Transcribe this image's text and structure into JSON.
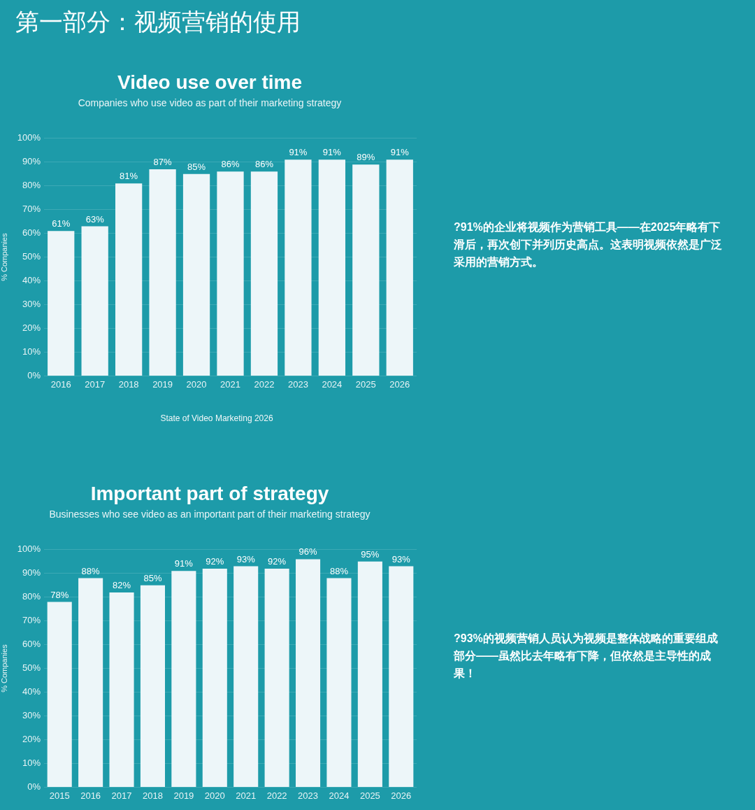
{
  "chart_data": [
    {
      "type": "bar",
      "title": "Video use over time",
      "subtitle": "Companies who use video as part of their marketing strategy",
      "ylabel": "% Companies",
      "categories": [
        "2016",
        "2017",
        "2018",
        "2019",
        "2020",
        "2021",
        "2022",
        "2023",
        "2024",
        "2025",
        "2026"
      ],
      "values": [
        61,
        63,
        81,
        87,
        85,
        86,
        86,
        91,
        91,
        89,
        91
      ],
      "color": "#edf6f9",
      "value_labels": [
        "61%",
        "63%",
        "81%",
        "87%",
        "85%",
        "86%",
        "86%",
        "91%",
        "91%",
        "89%",
        "91%"
      ],
      "ylim": [
        0,
        100
      ],
      "yticks": [
        {
          "value": 0,
          "label": "0%"
        },
        {
          "value": 10,
          "label": "10%"
        },
        {
          "value": 20,
          "label": "20%"
        },
        {
          "value": 30,
          "label": "30%"
        },
        {
          "value": 40,
          "label": "40%"
        },
        {
          "value": 50,
          "label": "50%"
        },
        {
          "value": 60,
          "label": "60%"
        },
        {
          "value": 70,
          "label": "70%"
        },
        {
          "value": 80,
          "label": "80%"
        },
        {
          "value": 90,
          "label": "90%"
        },
        {
          "value": 100,
          "label": "100%"
        }
      ],
      "grid": "y",
      "annotations": [
        "?91%的企业将视频作为营销工具——在2025年略有下滑后，再次创下并列历史高点。这表明视频依然是广泛采用的营销方式。",
        "State of Video Marketing 2026",
        "第一部分：视频营销的使用"
      ]
    },
    {
      "type": "bar",
      "title": "Important part of strategy",
      "subtitle": "Businesses who see video as an important part of their marketing strategy",
      "ylabel": "% Companies",
      "categories": [
        "2015",
        "2016",
        "2017",
        "2018",
        "2019",
        "2020",
        "2021",
        "2022",
        "2023",
        "2024",
        "2025",
        "2026"
      ],
      "values": [
        78,
        88,
        82,
        85,
        91,
        92,
        93,
        92,
        96,
        88,
        95,
        93
      ],
      "color": "#edf6f9",
      "value_labels": [
        "78%",
        "88%",
        "82%",
        "85%",
        "91%",
        "92%",
        "93%",
        "92%",
        "96%",
        "88%",
        "95%",
        "93%"
      ],
      "ylim": [
        0,
        100
      ],
      "yticks": [
        {
          "value": 0,
          "label": "0%"
        },
        {
          "value": 10,
          "label": "10%"
        },
        {
          "value": 20,
          "label": "20%"
        },
        {
          "value": 30,
          "label": "30%"
        },
        {
          "value": 40,
          "label": "40%"
        },
        {
          "value": 50,
          "label": "50%"
        },
        {
          "value": 60,
          "label": "60%"
        },
        {
          "value": 70,
          "label": "70%"
        },
        {
          "value": 80,
          "label": "80%"
        },
        {
          "value": 90,
          "label": "90%"
        },
        {
          "value": 100,
          "label": "100%"
        }
      ],
      "grid": "y",
      "annotations": [
        "?93%的视频营销人员认为视频是整体战略的重要组成部分——虽然比去年略有下降，但依然是主导性的成果！"
      ]
    }
  ]
}
